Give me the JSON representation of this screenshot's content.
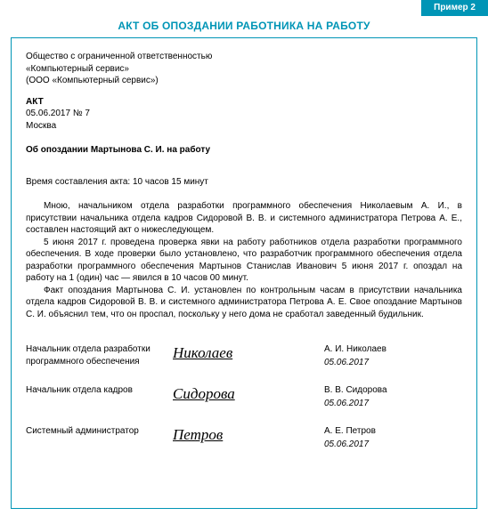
{
  "tab_label": "Пример  2",
  "title": "АКТ ОБ ОПОЗДАНИИ РАБОТНИКА НА РАБОТУ",
  "org": {
    "line1": "Общество с ограниченной ответственностью",
    "line2": "«Компьютерный сервис»",
    "line3": "(ООО «Компьютерный сервис»)"
  },
  "akt": {
    "label": "АКТ",
    "date_no": "05.06.2017 № 7",
    "city": "Москва"
  },
  "subject": "Об опоздании Мартынова С. И. на работу",
  "time_line": "Время составления акта: 10 часов 15 минут",
  "body": {
    "p1": "Мною, начальником отдела разработки программного обеспечения Николаевым А. И., в присутствии начальника отдела кадров Сидоровой В. В. и системного администратора Петрова А. Е., составлен настоящий акт о нижеследующем.",
    "p2": "5 июня 2017 г. проведена проверка явки на работу работников отдела разработки программного обеспечения. В ходе проверки было установлено, что разработчик программного обеспечения отдела разработки программного обеспечения Мартынов Станислав Иванович 5 июня 2017 г. опоздал на работу на 1 (один) час — явился в 10 часов 00 минут.",
    "p3": "Факт опоздания Мартынова С. И. установлен по контрольным часам в присутствии начальника отдела кадров Сидоровой В. В. и системного администратора Петрова А. Е. Свое опоздание Мартынов С. И. объяснил тем, что он проспал, поскольку у него дома не сработал заведенный будильник."
  },
  "signatures": [
    {
      "role_l1": "Начальник отдела разработки",
      "role_l2": "программного обеспечения",
      "scribble": "Николаев",
      "name": "А. И. Николаев",
      "date": "05.06.2017"
    },
    {
      "role_l1": "Начальник отдела кадров",
      "role_l2": "",
      "scribble": "Сидорова",
      "name": "В. В. Сидорова",
      "date": "05.06.2017"
    },
    {
      "role_l1": "Системный администратор",
      "role_l2": "",
      "scribble": "Петров",
      "name": "А. Е. Петров",
      "date": "05.06.2017"
    }
  ],
  "colors": {
    "accent": "#0095b6",
    "text": "#000000",
    "bg": "#ffffff"
  }
}
